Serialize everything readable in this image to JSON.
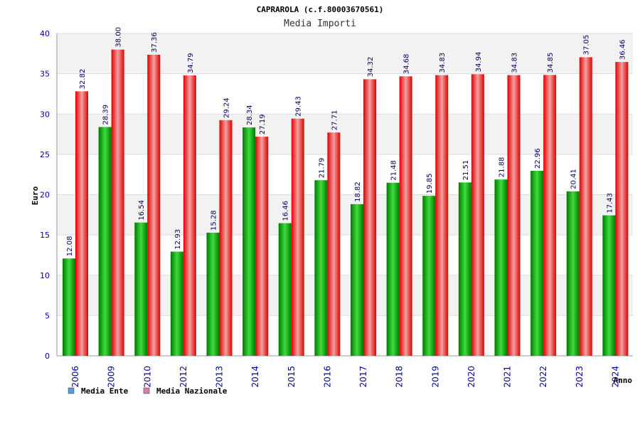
{
  "chart_data": {
    "type": "bar",
    "title": "CAPRAROLA (c.f.80003670561)",
    "subtitle": "Media Importi",
    "xlabel": "Anno",
    "ylabel": "Euro",
    "ylim": [
      0,
      40
    ],
    "yticks": [
      "0",
      "5",
      "10",
      "15",
      "20",
      "25",
      "30",
      "35",
      "40"
    ],
    "categories": [
      "2006",
      "2009",
      "2010",
      "2012",
      "2013",
      "2014",
      "2015",
      "2016",
      "2017",
      "2018",
      "2019",
      "2020",
      "2021",
      "2022",
      "2023",
      "2024"
    ],
    "series": [
      {
        "name": "Media Ente",
        "values": [
          12.08,
          28.39,
          16.54,
          12.93,
          15.28,
          28.34,
          16.46,
          21.79,
          18.82,
          21.48,
          19.85,
          21.51,
          21.88,
          22.96,
          20.41,
          17.43
        ],
        "labels": [
          "12.08",
          "28.39",
          "16.54",
          "12.93",
          "15.28",
          "28.34",
          "16.46",
          "21.79",
          "18.82",
          "21.48",
          "19.85",
          "21.51",
          "21.88",
          "22.96",
          "20.41",
          "17.43"
        ]
      },
      {
        "name": "Media Nazionale",
        "values": [
          32.82,
          38.0,
          37.36,
          34.79,
          29.24,
          27.19,
          29.43,
          27.71,
          34.32,
          34.68,
          34.83,
          34.94,
          34.83,
          34.85,
          37.05,
          36.46
        ],
        "labels": [
          "32.82",
          "38.00",
          "37.36",
          "34.79",
          "29.24",
          "27.19",
          "29.43",
          "27.71",
          "34.32",
          "34.68",
          "34.83",
          "34.94",
          "34.83",
          "34.85",
          "37.05",
          "36.46"
        ]
      }
    ],
    "legend": {
      "position": "bottom-left",
      "items": [
        {
          "label": "Media Ente",
          "color": "#5b9bd5"
        },
        {
          "label": "Media Nazionale",
          "color": "#d87ba8"
        }
      ]
    },
    "colors": {
      "ente_dark": "#007a00",
      "ente_light": "#3ddc3d",
      "naz_dark": "#e00000",
      "naz_light": "#f4a0a0",
      "band": "#f2f2f2",
      "axis_text": "#0000a0"
    }
  }
}
